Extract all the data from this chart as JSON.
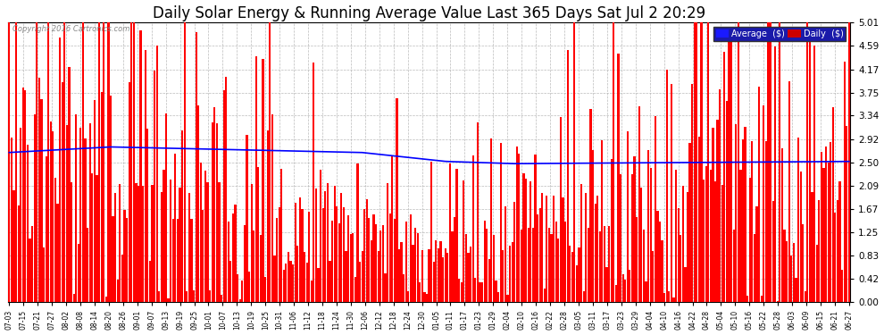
{
  "title": "Daily Solar Energy & Running Average Value Last 365 Days Sat Jul 2 20:29",
  "copyright": "Copyright 2016 Cartronics.com",
  "bar_color": "#FF0000",
  "avg_line_color": "#0000FF",
  "background_color": "#FFFFFF",
  "plot_bg_color": "#FFFFFF",
  "grid_color": "#AAAAAA",
  "ylim": [
    0.0,
    5.01
  ],
  "yticks": [
    0.0,
    0.42,
    0.83,
    1.25,
    1.67,
    2.09,
    2.5,
    2.92,
    3.34,
    3.75,
    4.17,
    4.59,
    5.01
  ],
  "legend_avg_color": "#0000AA",
  "legend_daily_color": "#CC0000",
  "title_fontsize": 12,
  "n_bars": 365,
  "xtick_labels": [
    "07-03",
    "07-15",
    "07-21",
    "07-27",
    "08-02",
    "08-08",
    "08-14",
    "08-20",
    "08-26",
    "09-01",
    "09-07",
    "09-13",
    "09-19",
    "09-25",
    "10-01",
    "10-07",
    "10-13",
    "10-19",
    "10-25",
    "10-31",
    "11-06",
    "11-12",
    "11-18",
    "11-24",
    "11-30",
    "12-06",
    "12-12",
    "12-18",
    "12-24",
    "12-30",
    "01-05",
    "01-11",
    "01-17",
    "01-23",
    "01-29",
    "02-04",
    "02-10",
    "02-16",
    "02-22",
    "02-28",
    "03-05",
    "03-11",
    "03-17",
    "03-23",
    "03-29",
    "04-04",
    "04-10",
    "04-16",
    "04-22",
    "04-28",
    "05-04",
    "05-10",
    "05-16",
    "05-22",
    "05-28",
    "06-03",
    "06-09",
    "06-15",
    "06-21",
    "06-27"
  ]
}
